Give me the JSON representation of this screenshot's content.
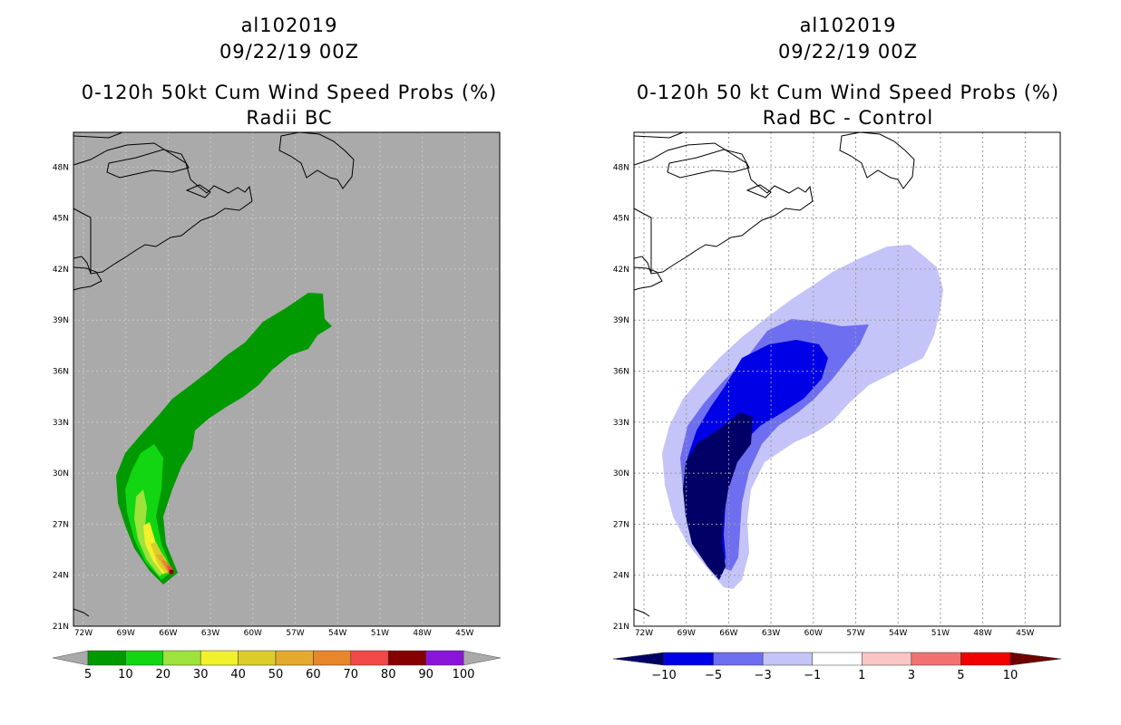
{
  "left_panel": {
    "title_line1": "al102019",
    "title_line2": "09/22/19 00Z",
    "title_line3": "0-120h 50kt Cum Wind Speed Probs (%)",
    "title_line4": "Radii BC",
    "background_color": "#aaaaaa",
    "colorbar": {
      "labels": [
        "5",
        "10",
        "20",
        "30",
        "40",
        "50",
        "60",
        "70",
        "80",
        "90",
        "100"
      ],
      "colors": [
        "#009900",
        "#11d611",
        "#9ee23c",
        "#f1f12c",
        "#dccd2c",
        "#e3aa2e",
        "#e8862a",
        "#f14848",
        "#850000",
        "#8a15d9"
      ],
      "end_color": "#a9a9a9"
    }
  },
  "right_panel": {
    "title_line1": "al102019",
    "title_line2": "09/22/19 00Z",
    "title_line3": "0-120h 50 kt Cum Wind Speed Probs (%)",
    "title_line4": "Rad BC - Control",
    "background_color": "#ffffff",
    "colorbar": {
      "labels": [
        "-10",
        "-5",
        "-3",
        "-1",
        "1",
        "3",
        "5",
        "10"
      ],
      "colors": [
        "#0000e6",
        "#6e6ef0",
        "#c4c4f8",
        "#ffffff",
        "#f9c5c5",
        "#f27272",
        "#f20000"
      ],
      "left_end_color": "#000066",
      "right_end_color": "#6e0000"
    }
  },
  "axes": {
    "lon_labels": [
      "72W",
      "69W",
      "66W",
      "63W",
      "60W",
      "57W",
      "54W",
      "51W",
      "48W",
      "45W"
    ],
    "lat_labels": [
      "21N",
      "24N",
      "27N",
      "30N",
      "33N",
      "36N",
      "39N",
      "42N",
      "45N",
      "48N"
    ]
  }
}
